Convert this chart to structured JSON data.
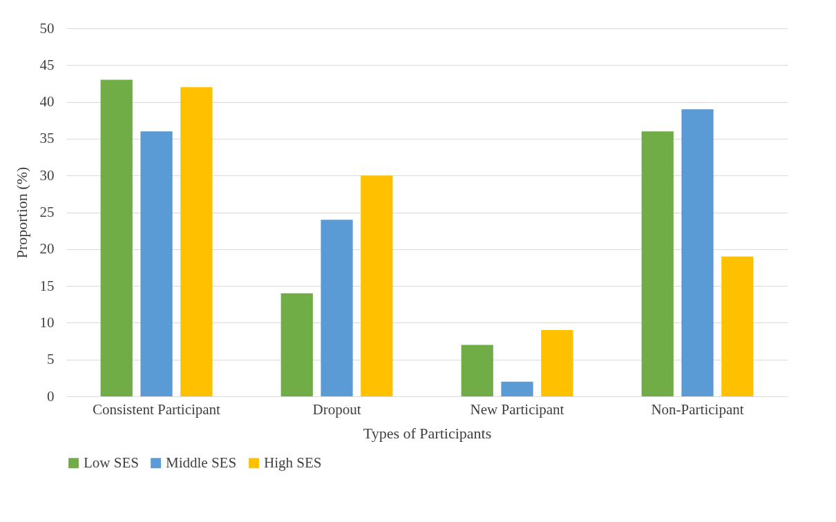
{
  "chart_data": {
    "type": "bar",
    "xlabel": "Types of Participants",
    "ylabel": "Proportion (%)",
    "categories": [
      "Consistent Participant",
      "Dropout",
      "New Participant",
      "Non-Participant"
    ],
    "series": [
      {
        "name": "Low SES",
        "color": "#70ad47",
        "values": [
          43,
          14,
          7,
          36
        ]
      },
      {
        "name": "Middle SES",
        "color": "#5b9bd5",
        "values": [
          36,
          24,
          2,
          39
        ]
      },
      {
        "name": "High SES",
        "color": "#ffc000",
        "values": [
          42,
          30,
          9,
          19
        ]
      }
    ],
    "ylim": [
      0,
      50
    ],
    "yticks": [
      0,
      5,
      10,
      15,
      20,
      25,
      30,
      35,
      40,
      45,
      50
    ],
    "grid": "y",
    "legend": "bottom"
  }
}
